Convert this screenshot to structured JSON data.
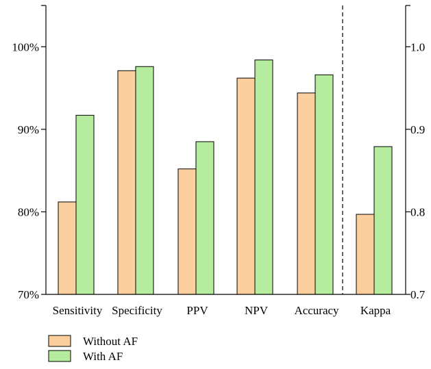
{
  "chart_data": {
    "type": "bar",
    "categories": [
      "Sensitivity",
      "Specificity",
      "PPV",
      "NPV",
      "Accuracy",
      "Kappa"
    ],
    "series": [
      {
        "name": "Without AF",
        "color": "#FCCF9E",
        "values": [
          81.2,
          97.1,
          85.2,
          96.2,
          94.4,
          0.797
        ]
      },
      {
        "name": "With AF",
        "color": "#B5EC9E",
        "values": [
          91.7,
          97.6,
          88.5,
          98.4,
          96.6,
          0.879
        ]
      }
    ],
    "left_axis": {
      "ylim": [
        70,
        105
      ],
      "ticks": [
        70,
        80,
        90,
        100
      ],
      "tick_labels": [
        "70%",
        "80%",
        "90%",
        "100%"
      ],
      "applies_to": [
        "Sensitivity",
        "Specificity",
        "PPV",
        "NPV",
        "Accuracy"
      ]
    },
    "right_axis": {
      "ylim": [
        0.7,
        1.05
      ],
      "ticks": [
        0.7,
        0.8,
        0.9,
        1.0
      ],
      "tick_labels": [
        "0.7",
        "0.8",
        "0.9",
        "1.0"
      ],
      "applies_to": [
        "Kappa"
      ]
    },
    "divider_between": [
      "Accuracy",
      "Kappa"
    ],
    "legend": {
      "placement": "bottom-left"
    },
    "grid": false
  }
}
